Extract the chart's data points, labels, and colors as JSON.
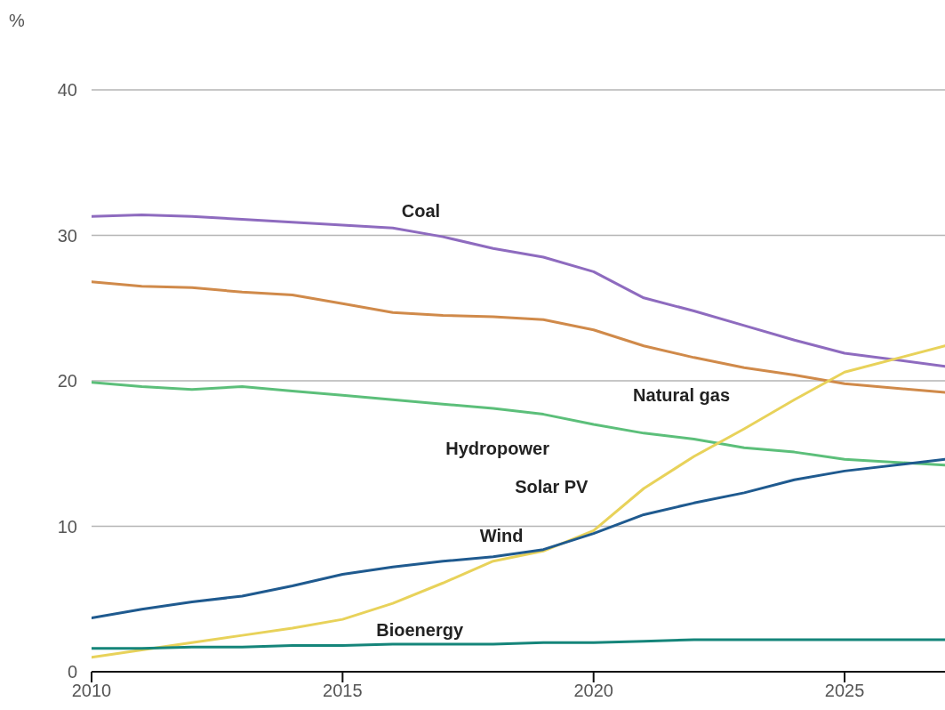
{
  "chart_data": {
    "type": "line",
    "ylabel": "%",
    "x": [
      2010,
      2011,
      2012,
      2013,
      2014,
      2015,
      2016,
      2017,
      2018,
      2019,
      2020,
      2021,
      2022,
      2023,
      2024,
      2025,
      2027
    ],
    "series": [
      {
        "name": "Coal",
        "color": "#8e6bbf",
        "values": [
          31.3,
          31.4,
          31.3,
          31.1,
          30.9,
          30.7,
          30.5,
          29.9,
          29.1,
          28.5,
          27.5,
          25.7,
          24.8,
          23.8,
          22.8,
          21.9,
          21.0
        ]
      },
      {
        "name": "Natural gas",
        "color": "#d08a4a",
        "values": [
          26.8,
          26.5,
          26.4,
          26.1,
          25.9,
          25.3,
          24.7,
          24.5,
          24.4,
          24.2,
          23.5,
          22.4,
          21.6,
          20.9,
          20.4,
          19.8,
          19.2
        ]
      },
      {
        "name": "Hydropower",
        "color": "#5cbf7a",
        "values": [
          19.9,
          19.6,
          19.4,
          19.6,
          19.3,
          19.0,
          18.7,
          18.4,
          18.1,
          17.7,
          17.0,
          16.4,
          16.0,
          15.4,
          15.1,
          14.6,
          14.2
        ]
      },
      {
        "name": "Solar PV",
        "color": "#e8d25a",
        "values": [
          1.0,
          1.5,
          2.0,
          2.5,
          3.0,
          3.6,
          4.7,
          6.1,
          7.6,
          8.3,
          9.7,
          12.6,
          14.8,
          16.7,
          18.7,
          20.6,
          22.4
        ]
      },
      {
        "name": "Wind",
        "color": "#1f5a8f",
        "values": [
          3.7,
          4.3,
          4.8,
          5.2,
          5.9,
          6.7,
          7.2,
          7.6,
          7.9,
          8.4,
          9.5,
          10.8,
          11.6,
          12.3,
          13.2,
          13.8,
          14.6
        ]
      },
      {
        "name": "Bioenergy",
        "color": "#15857a",
        "values": [
          1.6,
          1.6,
          1.7,
          1.7,
          1.8,
          1.8,
          1.9,
          1.9,
          1.9,
          2.0,
          2.0,
          2.1,
          2.2,
          2.2,
          2.2,
          2.2,
          2.2
        ]
      }
    ],
    "xlim": [
      2010,
      2027
    ],
    "xticks": [
      2010,
      2015,
      2020,
      2025
    ],
    "ylim": [
      0,
      40
    ],
    "yticks": [
      0,
      10,
      20,
      30,
      40
    ],
    "grid": "y",
    "legend": false,
    "marker": "none",
    "line_style": "solid"
  }
}
